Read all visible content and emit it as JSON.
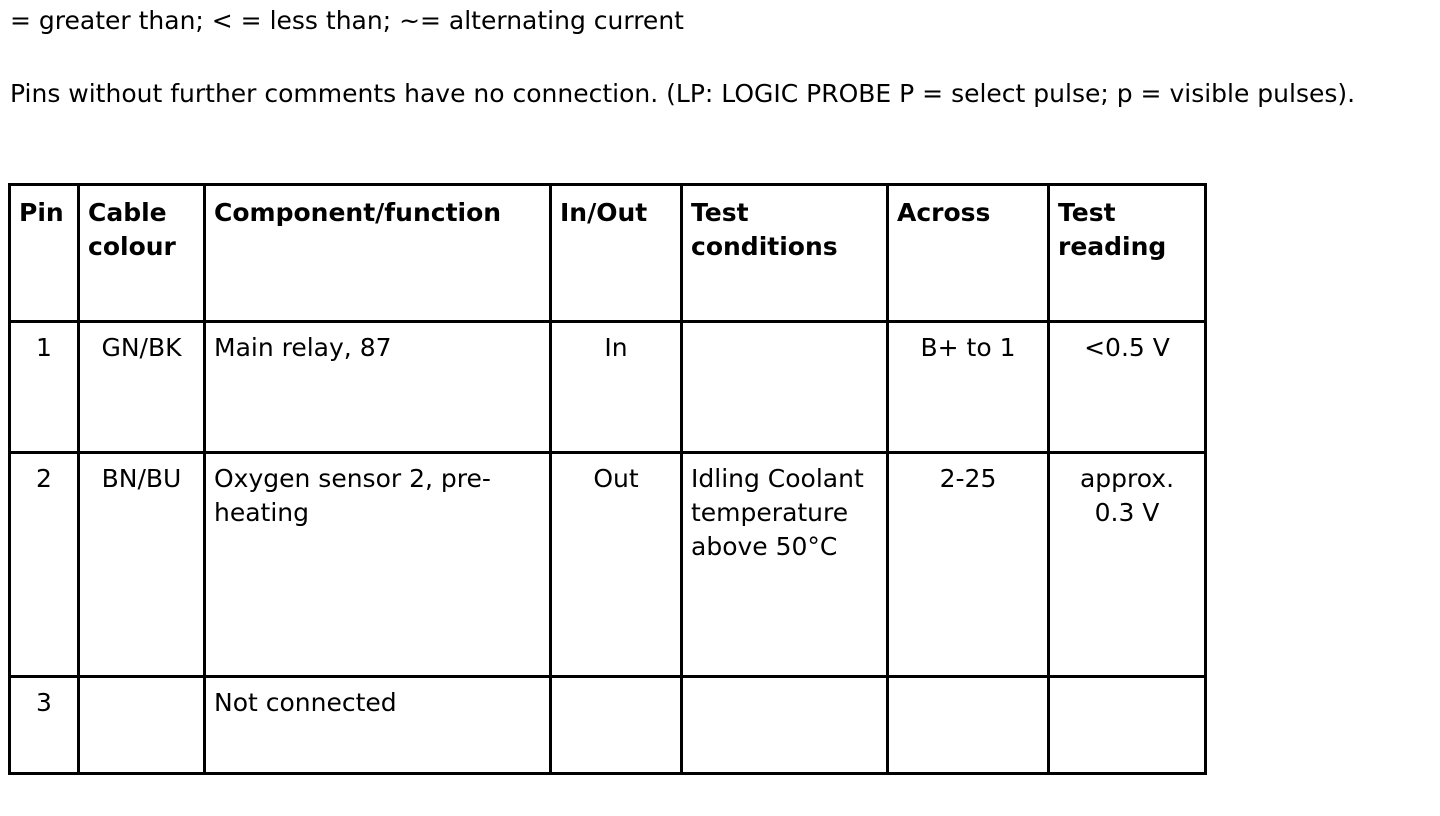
{
  "notes": {
    "legend_line": "= greater than; < = less than; ~= alternating current",
    "pins_note": "Pins without further comments have no connection. (LP: LOGIC PROBE P = select pulse; p = visible pulses)."
  },
  "table": {
    "headers": [
      "Pin",
      "Cable colour",
      "Component/function",
      "In/Out",
      "Test conditions",
      "Across",
      "Test reading"
    ],
    "rows": [
      {
        "pin": "1",
        "cable": "GN/BK",
        "component": "Main relay, 87",
        "inout": "In",
        "conditions": "",
        "across": "B+ to 1",
        "reading": "<0.5 V"
      },
      {
        "pin": "2",
        "cable": "BN/BU",
        "component": "Oxygen sensor 2, pre-heating",
        "inout": "Out",
        "conditions": "Idling Coolant temperature above 50°C",
        "across": "2-25",
        "reading": "approx. 0.3 V"
      },
      {
        "pin": "3",
        "cable": "",
        "component": "Not connected",
        "inout": "",
        "conditions": "",
        "across": "",
        "reading": ""
      }
    ]
  }
}
